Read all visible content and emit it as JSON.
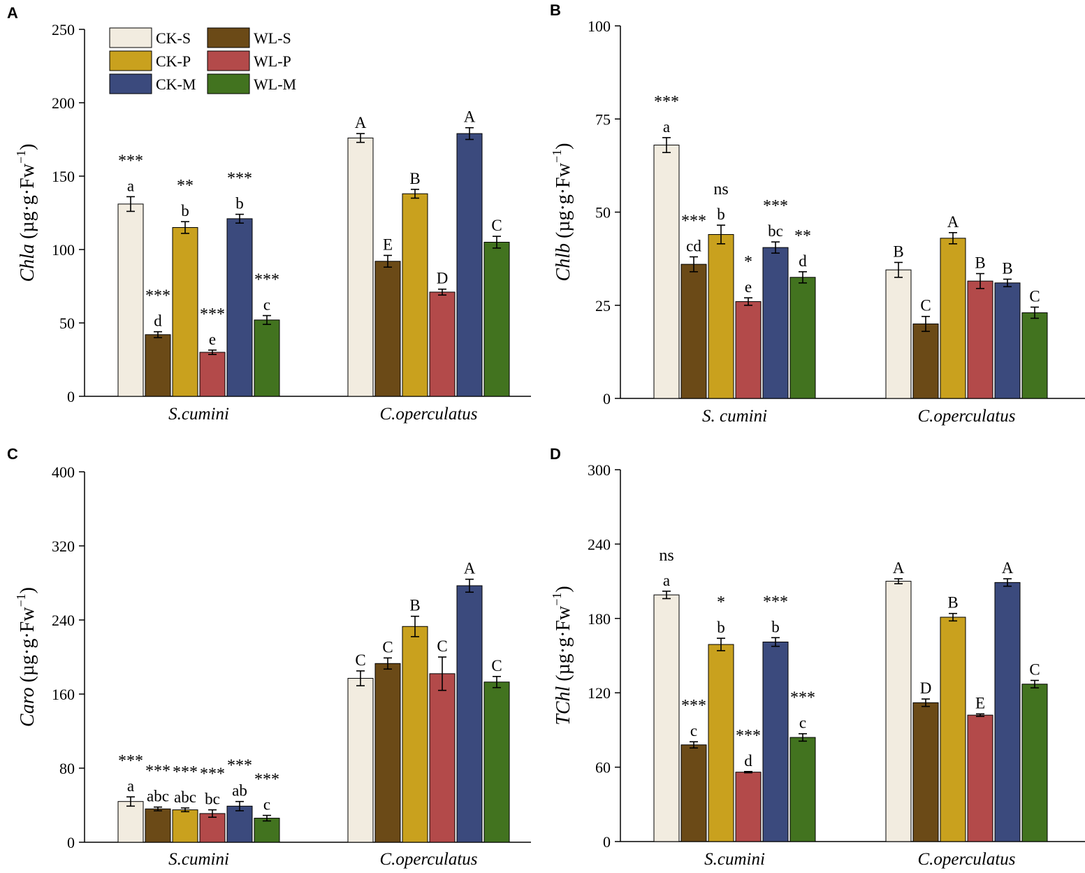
{
  "series_colors": {
    "CK-S": "#f2ece0",
    "WL-S": "#6b4a17",
    "CK-P": "#c9a11e",
    "WL-P": "#b34a4a",
    "CK-M": "#3b4a7d",
    "WL-M": "#42731f"
  },
  "legend": [
    "CK-S",
    "CK-P",
    "CK-M",
    "WL-S",
    "WL-P",
    "WL-M"
  ],
  "chart_data": [
    {
      "type": "bar",
      "panel": "A",
      "ylabel": "Chla (µg·g·Fw⁻¹)",
      "ylabel_italic": "Chla",
      "ylabel_unit": " (µg·g·Fw",
      "ylabel_exp": "−1",
      "ylim": [
        0,
        250
      ],
      "yticks": [
        0,
        50,
        100,
        150,
        200,
        250
      ],
      "categories": [
        "S.cumini",
        "C.operculatus"
      ],
      "series": [
        {
          "name": "CK-S",
          "values": [
            131,
            176
          ],
          "errors": [
            5,
            3
          ],
          "letters": [
            "a",
            "A"
          ]
        },
        {
          "name": "WL-S",
          "values": [
            42,
            92
          ],
          "errors": [
            2,
            4
          ],
          "letters": [
            "d",
            "E"
          ]
        },
        {
          "name": "CK-P",
          "values": [
            115,
            138
          ],
          "errors": [
            4,
            3
          ],
          "letters": [
            "b",
            "B"
          ]
        },
        {
          "name": "WL-P",
          "values": [
            30,
            71
          ],
          "errors": [
            1.5,
            2
          ],
          "letters": [
            "e",
            "D"
          ]
        },
        {
          "name": "CK-M",
          "values": [
            121,
            179
          ],
          "errors": [
            3,
            4
          ],
          "letters": [
            "b",
            "A"
          ]
        },
        {
          "name": "WL-M",
          "values": [
            52,
            105
          ],
          "errors": [
            3,
            4
          ],
          "letters": [
            "c",
            "C"
          ]
        }
      ],
      "stars": [
        "***",
        "***",
        "**",
        "***",
        "***",
        "***"
      ]
    },
    {
      "type": "bar",
      "panel": "B",
      "ylabel": "Chlb (µg·g·Fw⁻¹)",
      "ylabel_italic": "Chlb",
      "ylabel_unit": " (µg·g·Fw",
      "ylabel_exp": "−1",
      "ylim": [
        0,
        100
      ],
      "yticks": [
        0,
        25,
        50,
        75,
        100
      ],
      "categories": [
        "S. cumini",
        "C.operculatus"
      ],
      "series": [
        {
          "name": "CK-S",
          "values": [
            68,
            34.5
          ],
          "errors": [
            2,
            2
          ],
          "letters": [
            "a",
            "B"
          ]
        },
        {
          "name": "WL-S",
          "values": [
            36,
            20
          ],
          "errors": [
            2,
            2
          ],
          "letters": [
            "cd",
            "C"
          ]
        },
        {
          "name": "CK-P",
          "values": [
            44,
            43
          ],
          "errors": [
            2.5,
            1.5
          ],
          "letters": [
            "b",
            "A"
          ]
        },
        {
          "name": "WL-P",
          "values": [
            26,
            31.5
          ],
          "errors": [
            1,
            2
          ],
          "letters": [
            "e",
            "B"
          ]
        },
        {
          "name": "CK-M",
          "values": [
            40.5,
            31
          ],
          "errors": [
            1.5,
            1
          ],
          "letters": [
            "bc",
            "B"
          ]
        },
        {
          "name": "WL-M",
          "values": [
            32.5,
            23
          ],
          "errors": [
            1.5,
            1.5
          ],
          "letters": [
            "d",
            "C"
          ]
        }
      ],
      "stars": [
        "***",
        "***",
        "ns",
        "*",
        "***",
        "**"
      ]
    },
    {
      "type": "bar",
      "panel": "C",
      "ylabel": "Caro (µg·g·Fw⁻¹)",
      "ylabel_italic": "Caro",
      "ylabel_unit": " (µg·g·Fw",
      "ylabel_exp": "−1",
      "ylim": [
        0,
        400
      ],
      "yticks": [
        0,
        80,
        160,
        240,
        320,
        400
      ],
      "categories": [
        "S.cumini",
        "C.operculatus"
      ],
      "series": [
        {
          "name": "CK-S",
          "values": [
            44,
            177
          ],
          "errors": [
            5,
            8
          ],
          "letters": [
            "a",
            "C"
          ]
        },
        {
          "name": "WL-S",
          "values": [
            36,
            193
          ],
          "errors": [
            2,
            6
          ],
          "letters": [
            "abc",
            "C"
          ]
        },
        {
          "name": "CK-P",
          "values": [
            35,
            233
          ],
          "errors": [
            2,
            11
          ],
          "letters": [
            "abc",
            "B"
          ]
        },
        {
          "name": "WL-P",
          "values": [
            31,
            182
          ],
          "errors": [
            4,
            18
          ],
          "letters": [
            "bc",
            "C"
          ]
        },
        {
          "name": "CK-M",
          "values": [
            39,
            277
          ],
          "errors": [
            5,
            7
          ],
          "letters": [
            "ab",
            "A"
          ]
        },
        {
          "name": "WL-M",
          "values": [
            26,
            173
          ],
          "errors": [
            3,
            6
          ],
          "letters": [
            "c",
            "C"
          ]
        }
      ],
      "stars": [
        "***",
        "***",
        "***",
        "***",
        "***",
        "***"
      ]
    },
    {
      "type": "bar",
      "panel": "D",
      "ylabel": "TChl (µg·g·Fw⁻¹)",
      "ylabel_italic": "TChl",
      "ylabel_unit": " (µg·g·Fw",
      "ylabel_exp": "−1",
      "ylim": [
        0,
        300
      ],
      "yticks": [
        0,
        60,
        120,
        180,
        240,
        300
      ],
      "categories": [
        "S.cumini",
        "C.operculatus"
      ],
      "series": [
        {
          "name": "CK-S",
          "values": [
            199,
            210
          ],
          "errors": [
            3,
            2
          ],
          "letters": [
            "a",
            "A"
          ]
        },
        {
          "name": "WL-S",
          "values": [
            78,
            112
          ],
          "errors": [
            2.5,
            3
          ],
          "letters": [
            "c",
            "D"
          ]
        },
        {
          "name": "CK-P",
          "values": [
            159,
            181
          ],
          "errors": [
            5,
            3
          ],
          "letters": [
            "b",
            "B"
          ]
        },
        {
          "name": "WL-P",
          "values": [
            56,
            102
          ],
          "errors": [
            0.5,
            1
          ],
          "letters": [
            "d",
            "E"
          ]
        },
        {
          "name": "CK-M",
          "values": [
            161,
            209
          ],
          "errors": [
            3.5,
            3
          ],
          "letters": [
            "b",
            "A"
          ]
        },
        {
          "name": "WL-M",
          "values": [
            84,
            127
          ],
          "errors": [
            3,
            3
          ],
          "letters": [
            "c",
            "C"
          ]
        }
      ],
      "stars": [
        "ns",
        "***",
        "*",
        "***",
        "***",
        "***"
      ]
    }
  ]
}
